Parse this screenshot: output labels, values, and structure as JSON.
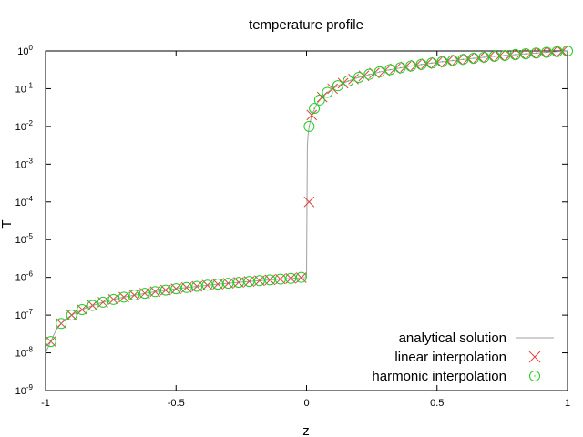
{
  "chart_data": {
    "type": "line",
    "title": "temperature profile",
    "xlabel": "z",
    "ylabel": "T",
    "xlim": [
      -1,
      1
    ],
    "ylim": [
      1e-09,
      1
    ],
    "yscale": "log",
    "grid": false,
    "legend_position": "bottom-right",
    "x_ticks": [
      {
        "value": -1,
        "label": "-1"
      },
      {
        "value": -0.5,
        "label": "-0.5"
      },
      {
        "value": 0,
        "label": "0"
      },
      {
        "value": 0.5,
        "label": "0.5"
      },
      {
        "value": 1,
        "label": "1"
      }
    ],
    "y_ticks": [
      {
        "value": 1e-09,
        "base": "10",
        "exp": "-9"
      },
      {
        "value": 1e-08,
        "base": "10",
        "exp": "-8"
      },
      {
        "value": 1e-07,
        "base": "10",
        "exp": "-7"
      },
      {
        "value": 1e-06,
        "base": "10",
        "exp": "-6"
      },
      {
        "value": 1e-05,
        "base": "10",
        "exp": "-5"
      },
      {
        "value": 0.0001,
        "base": "10",
        "exp": "-4"
      },
      {
        "value": 0.001,
        "base": "10",
        "exp": "-3"
      },
      {
        "value": 0.01,
        "base": "10",
        "exp": "-2"
      },
      {
        "value": 0.1,
        "base": "10",
        "exp": "-1"
      },
      {
        "value": 1,
        "base": "10",
        "exp": "0"
      }
    ],
    "series": [
      {
        "name": "analytical solution",
        "style": "line",
        "color": "#a0a0a0",
        "x": [
          -1.0,
          -0.98,
          -0.96,
          -0.94,
          -0.92,
          -0.9,
          -0.85,
          -0.8,
          -0.75,
          -0.7,
          -0.6,
          -0.5,
          -0.4,
          -0.3,
          -0.2,
          -0.1,
          -0.05,
          0.0,
          0.0,
          0.003,
          0.006,
          0.01,
          0.02,
          0.04,
          0.06,
          0.08,
          0.1,
          0.15,
          0.2,
          0.3,
          0.4,
          0.5,
          0.6,
          0.7,
          0.8,
          0.9,
          1.0
        ],
        "y": [
          1e-08,
          2e-08,
          4e-08,
          6e-08,
          8e-08,
          1e-07,
          1.5e-07,
          2e-07,
          2.5e-07,
          3e-07,
          4e-07,
          5e-07,
          6e-07,
          7e-07,
          8e-07,
          9e-07,
          9.5e-07,
          1e-06,
          1e-06,
          0.003,
          0.006,
          0.01,
          0.02,
          0.04,
          0.06,
          0.08,
          0.1,
          0.15,
          0.2,
          0.3,
          0.4,
          0.5,
          0.6,
          0.7,
          0.8,
          0.9,
          1.0
        ]
      },
      {
        "name": "linear interpolation",
        "style": "marker-x",
        "color": "#e04040",
        "x": [
          -0.98,
          -0.94,
          -0.9,
          -0.86,
          -0.82,
          -0.78,
          -0.74,
          -0.7,
          -0.66,
          -0.62,
          -0.58,
          -0.54,
          -0.5,
          -0.46,
          -0.42,
          -0.38,
          -0.34,
          -0.3,
          -0.26,
          -0.22,
          -0.18,
          -0.14,
          -0.1,
          -0.06,
          -0.02,
          0.01,
          0.02,
          0.06,
          0.1,
          0.14,
          0.18,
          0.22,
          0.26,
          0.3,
          0.34,
          0.38,
          0.42,
          0.46,
          0.5,
          0.54,
          0.58,
          0.62,
          0.66,
          0.7,
          0.74,
          0.78,
          0.82,
          0.86,
          0.9,
          0.94,
          0.98
        ],
        "y": [
          2e-08,
          6e-08,
          1e-07,
          1.4e-07,
          1.8e-07,
          2.2e-07,
          2.6e-07,
          3e-07,
          3.4e-07,
          3.8e-07,
          4.2e-07,
          4.6e-07,
          5e-07,
          5.4e-07,
          5.8e-07,
          6.2e-07,
          6.6e-07,
          7e-07,
          7.4e-07,
          7.8e-07,
          8.2e-07,
          8.6e-07,
          9e-07,
          9.4e-07,
          9.8e-07,
          0.0001,
          0.02,
          0.06,
          0.1,
          0.14,
          0.18,
          0.22,
          0.26,
          0.3,
          0.34,
          0.38,
          0.42,
          0.46,
          0.5,
          0.54,
          0.58,
          0.62,
          0.66,
          0.7,
          0.74,
          0.78,
          0.82,
          0.86,
          0.9,
          0.94,
          0.98
        ]
      },
      {
        "name": "harmonic interpolation",
        "style": "marker-circle",
        "color": "#22cc22",
        "x": [
          -0.98,
          -0.94,
          -0.9,
          -0.86,
          -0.82,
          -0.78,
          -0.74,
          -0.7,
          -0.66,
          -0.62,
          -0.58,
          -0.54,
          -0.5,
          -0.46,
          -0.42,
          -0.38,
          -0.34,
          -0.3,
          -0.26,
          -0.22,
          -0.18,
          -0.14,
          -0.1,
          -0.06,
          -0.02,
          0.01,
          0.03,
          0.05,
          0.08,
          0.12,
          0.16,
          0.2,
          0.24,
          0.28,
          0.32,
          0.36,
          0.4,
          0.44,
          0.48,
          0.52,
          0.56,
          0.6,
          0.64,
          0.68,
          0.72,
          0.76,
          0.8,
          0.84,
          0.88,
          0.92,
          0.96,
          1.0
        ],
        "y": [
          2e-08,
          6e-08,
          1e-07,
          1.4e-07,
          1.8e-07,
          2.2e-07,
          2.6e-07,
          3e-07,
          3.4e-07,
          3.8e-07,
          4.2e-07,
          4.6e-07,
          5e-07,
          5.4e-07,
          5.8e-07,
          6.2e-07,
          6.6e-07,
          7e-07,
          7.4e-07,
          7.8e-07,
          8.2e-07,
          8.6e-07,
          9e-07,
          9.4e-07,
          1e-06,
          0.01,
          0.03,
          0.05,
          0.08,
          0.12,
          0.16,
          0.2,
          0.24,
          0.28,
          0.32,
          0.36,
          0.4,
          0.44,
          0.48,
          0.52,
          0.56,
          0.6,
          0.64,
          0.68,
          0.72,
          0.76,
          0.8,
          0.84,
          0.88,
          0.92,
          0.96,
          1.0
        ]
      }
    ]
  }
}
